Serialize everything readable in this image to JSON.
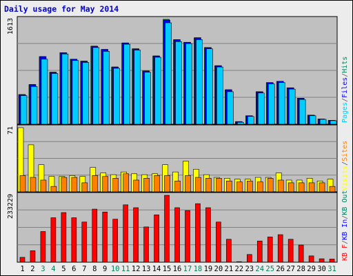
{
  "chart_data": {
    "type": "bar",
    "title": "Daily usage for May 2014",
    "categories": [
      "1",
      "2",
      "3",
      "4",
      "5",
      "6",
      "7",
      "8",
      "9",
      "10",
      "11",
      "12",
      "13",
      "14",
      "15",
      "16",
      "17",
      "18",
      "19",
      "20",
      "21",
      "22",
      "23",
      "24",
      "25",
      "26",
      "27",
      "28",
      "29",
      "30",
      "31"
    ],
    "weekend_days": [
      "3",
      "4",
      "10",
      "11",
      "17",
      "18",
      "24",
      "25",
      "31"
    ],
    "panels": [
      {
        "id": "hits",
        "max_label": "1613",
        "ymax": 1613,
        "legend": [
          {
            "text": "Pages",
            "color": "#00ccff"
          },
          {
            "text": "/",
            "color": "#555555"
          },
          {
            "text": "Files",
            "color": "#0000ff"
          },
          {
            "text": "/",
            "color": "#555555"
          },
          {
            "text": "Hits",
            "color": "#00805c"
          }
        ],
        "series": [
          {
            "name": "Hits",
            "color": "#00805c",
            "values": [
              456,
              610,
              1040,
              800,
              1100,
              1000,
              970,
              1200,
              1150,
              880,
              1250,
              1160,
              820,
              1050,
              1613,
              1300,
              1260,
              1330,
              1180,
              900,
              530,
              40,
              130,
              500,
              640,
              660,
              560,
              400,
              140,
              80,
              60
            ]
          },
          {
            "name": "Files",
            "color": "#0000ff",
            "values": [
              456,
              610,
              1040,
              800,
              1100,
              1000,
              970,
              1200,
              1150,
              880,
              1250,
              1160,
              820,
              1050,
              1600,
              1300,
              1260,
              1330,
              1180,
              900,
              530,
              40,
              130,
              500,
              640,
              660,
              560,
              400,
              140,
              80,
              60
            ]
          },
          {
            "name": "Pages",
            "color": "#00ccff",
            "values": [
              440,
              580,
              1000,
              780,
              1080,
              980,
              950,
              1180,
              1120,
              860,
              1230,
              1140,
              800,
              1030,
              1560,
              1270,
              1240,
              1300,
              1160,
              880,
              500,
              30,
              120,
              480,
              620,
              640,
              540,
              380,
              130,
              75,
              55
            ]
          }
        ]
      },
      {
        "id": "visits",
        "max_label": "71",
        "ymax": 71,
        "legend": [
          {
            "text": "Visits",
            "color": "#ffff00"
          },
          {
            "text": "/",
            "color": "#555555"
          },
          {
            "text": "Sites",
            "color": "#ff8000"
          }
        ],
        "series": [
          {
            "name": "Visits",
            "color": "#ffff00",
            "values": [
              71,
              52,
              30,
              17,
              17,
              18,
              17,
              27,
              21,
              19,
              22,
              20,
              19,
              20,
              30,
              22,
              34,
              25,
              19,
              16,
              15,
              14,
              14,
              16,
              16,
              21,
              13,
              13,
              15,
              12,
              14
            ]
          },
          {
            "name": "Sites",
            "color": "#ff8000",
            "values": [
              18,
              16,
              13,
              6,
              16,
              16,
              10,
              18,
              17,
              15,
              20,
              13,
              15,
              18,
              18,
              12,
              18,
              16,
              15,
              15,
              12,
              11,
              12,
              11,
              15,
              13,
              10,
              10,
              10,
              10,
              6
            ]
          }
        ]
      },
      {
        "id": "kbytes",
        "max_label": "233229",
        "ymax": 233229,
        "legend": [
          {
            "text": "KB F",
            "color": "#ff0000"
          },
          {
            "text": "/",
            "color": "#555555"
          },
          {
            "text": "KB In",
            "color": "#0000ff"
          },
          {
            "text": "/",
            "color": "#555555"
          },
          {
            "text": "KB Out",
            "color": "#00805c"
          }
        ],
        "series": [
          {
            "name": "KB F",
            "color": "#ff0000",
            "values": [
              17000,
              40000,
              107000,
              155000,
              173000,
              155000,
              140000,
              185000,
              175000,
              150000,
              200000,
              190000,
              123000,
              165000,
              233229,
              190000,
              180000,
              204000,
              190000,
              140000,
              80000,
              2000,
              27000,
              74000,
              88000,
              96000,
              80000,
              60000,
              22000,
              12000,
              11000
            ]
          }
        ]
      }
    ]
  }
}
